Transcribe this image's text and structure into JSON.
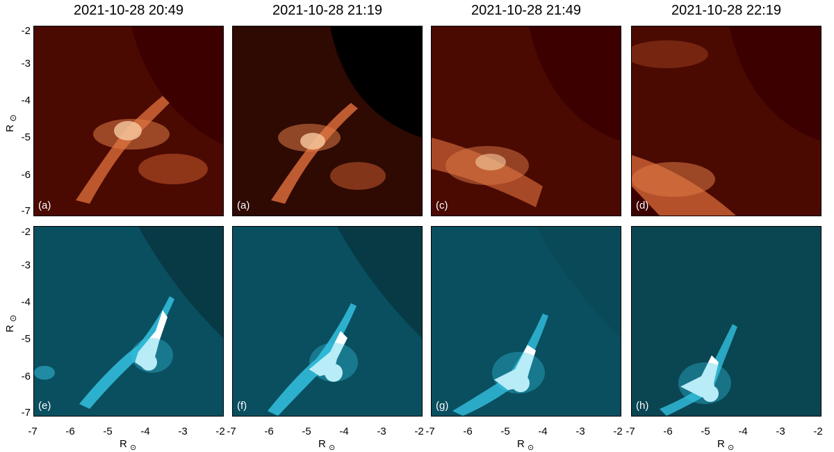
{
  "titles": [
    "2021-10-28 20:49",
    "2021-10-28 21:19",
    "2021-10-28 21:49",
    "2021-10-28 22:19"
  ],
  "panel_labels": {
    "top": [
      "(a)",
      "(a)",
      "(c)",
      "(d)"
    ],
    "bottom": [
      "(e)",
      "(f)",
      "(g)",
      "(h)"
    ]
  },
  "y_ticks": [
    "-2",
    "-3",
    "-4",
    "-5",
    "-6",
    "-7"
  ],
  "x_ticks": [
    "-7",
    "-6",
    "-5",
    "-4",
    "-3",
    "-2"
  ],
  "axis_label": "R",
  "axis_sub": "⊙",
  "colors": {
    "top_bg": "#4a0a02",
    "top_disk": "#3d0000",
    "top_bright": "#f6c9a0",
    "bottom_bg": "#0a4f5f",
    "bottom_corner": "#073a45",
    "bottom_bright": "#ffffff",
    "bottom_glow": "#35c8e8"
  }
}
